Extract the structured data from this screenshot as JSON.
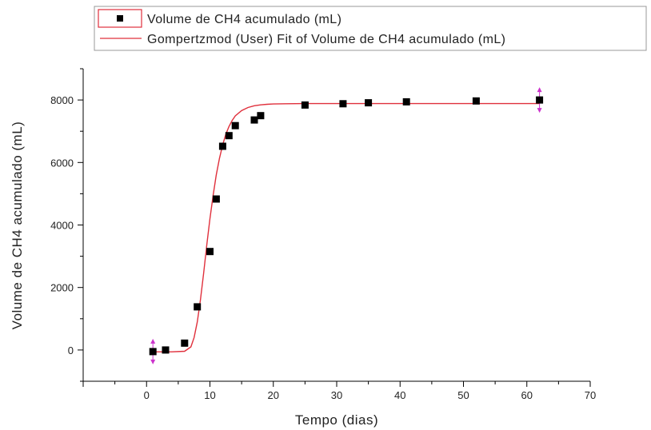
{
  "chart_data": {
    "type": "scatter",
    "xlabel": "Tempo (dias)",
    "ylabel": "Volume de CH4 acumulado (mL)",
    "xlim": [
      -10,
      70
    ],
    "ylim": [
      -1000,
      9000
    ],
    "x_ticks": [
      0,
      10,
      20,
      30,
      40,
      50,
      60,
      70
    ],
    "y_ticks": [
      0,
      2000,
      4000,
      6000,
      8000
    ],
    "grid": false,
    "legend_position": "top",
    "series": [
      {
        "name": "Volume de CH4 acumulado (mL)",
        "kind": "scatter",
        "marker": "square",
        "color": "#000000",
        "x": [
          1,
          3,
          6,
          8,
          10,
          11,
          12,
          13,
          14,
          17,
          18,
          25,
          31,
          35,
          41,
          52,
          62
        ],
        "y": [
          -50,
          0,
          220,
          1380,
          3150,
          4830,
          6520,
          6860,
          7180,
          7360,
          7500,
          7840,
          7880,
          7910,
          7940,
          7970,
          8000
        ]
      },
      {
        "name": "Gompertzmod (User) Fit of Volume de CH4 acumulado (mL)",
        "kind": "line",
        "color": "#e0303c",
        "x": [
          1,
          4,
          6,
          7,
          7.5,
          8,
          8.5,
          9,
          9.5,
          10,
          10.5,
          11,
          11.5,
          12,
          12.5,
          13,
          13.5,
          14,
          15,
          16,
          17,
          18,
          19,
          20,
          22,
          25,
          30,
          40,
          50,
          62
        ],
        "y": [
          -60,
          -60,
          -40,
          100,
          400,
          900,
          1600,
          2450,
          3350,
          4200,
          4950,
          5600,
          6130,
          6560,
          6900,
          7150,
          7340,
          7490,
          7660,
          7760,
          7815,
          7845,
          7862,
          7872,
          7880,
          7884,
          7886,
          7886,
          7886,
          7886
        ]
      }
    ],
    "annotations": {
      "marker_arrows_color": "#cc33cc",
      "arrow_points_x": [
        1,
        62
      ]
    }
  }
}
